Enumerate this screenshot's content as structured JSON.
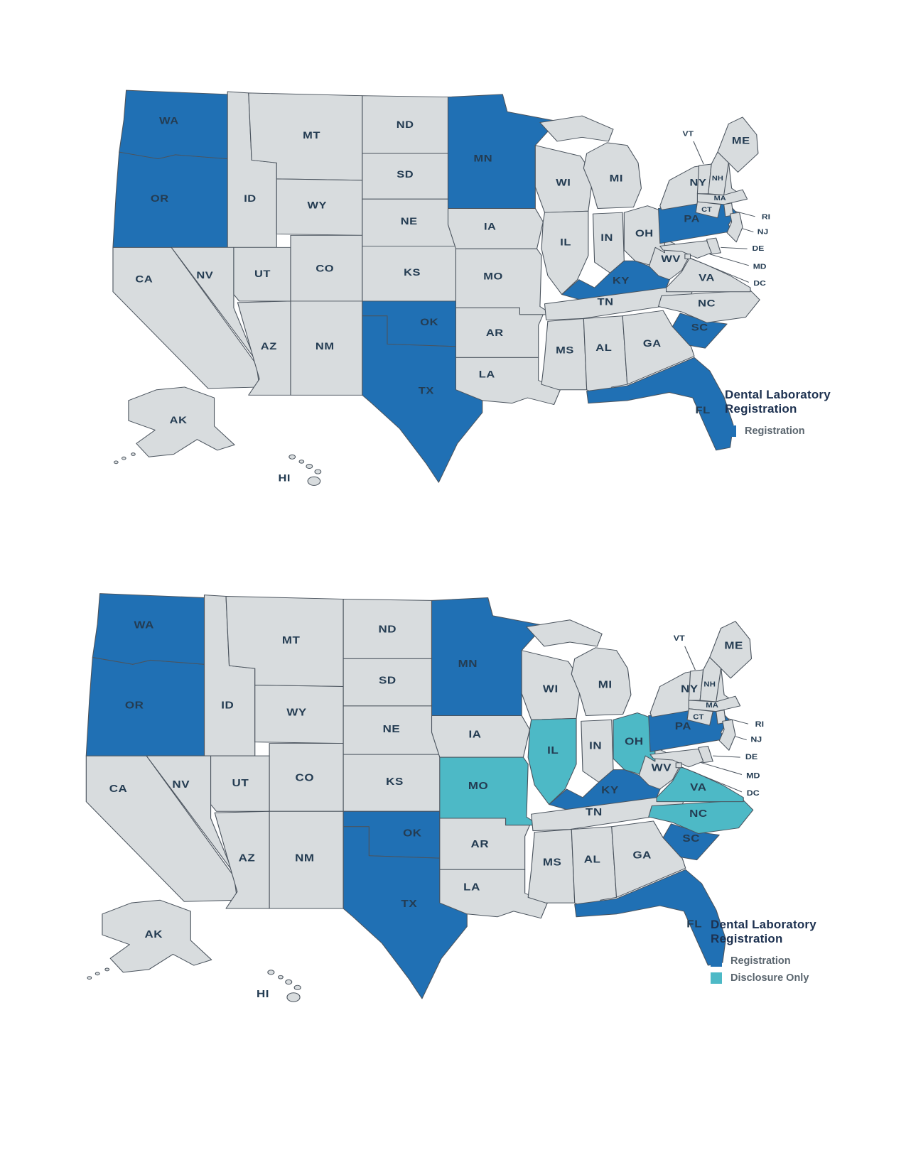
{
  "colors": {
    "registration": "#2070b4",
    "disclosure_only": "#4db9c6",
    "state_default": "#d8dcde",
    "state_border": "#4b545e",
    "state_label": "#243c52",
    "leader_line": "#4b545e",
    "legend_title": "#1d3150",
    "legend_text": "#5a656e",
    "background": "#ffffff"
  },
  "legend": {
    "title_line1": "Dental Laboratory",
    "title_line2": "Registration"
  },
  "maps": [
    {
      "name": "registration-only-map",
      "legend_items": [
        {
          "type": "registration",
          "label": "Registration"
        }
      ],
      "registration_states": [
        "WA",
        "OR",
        "MN",
        "PA",
        "KY",
        "OK",
        "TX",
        "SC",
        "FL"
      ],
      "disclosure_states": []
    },
    {
      "name": "registration-and-disclosure-map",
      "legend_items": [
        {
          "type": "registration",
          "label": "Registration"
        },
        {
          "type": "disclosure_only",
          "label": "Disclosure Only"
        }
      ],
      "registration_states": [
        "WA",
        "OR",
        "MN",
        "PA",
        "KY",
        "OK",
        "TX",
        "SC",
        "FL"
      ],
      "disclosure_states": [
        "MO",
        "IL",
        "OH",
        "VA",
        "NC"
      ]
    }
  ],
  "states": [
    "CA",
    "OR",
    "WA",
    "ID",
    "MT",
    "WY",
    "NV",
    "UT",
    "CO",
    "AZ",
    "NM",
    "ND",
    "SD",
    "NE",
    "KS",
    "OK",
    "TX",
    "MN",
    "IA",
    "MO",
    "AR",
    "LA",
    "WI",
    "IL",
    "MI",
    "IN",
    "OH",
    "KY",
    "TN",
    "MS",
    "AL",
    "GA",
    "FL",
    "SC",
    "NC",
    "VA",
    "WV",
    "PA",
    "NY",
    "ME",
    "VT",
    "NH",
    "MA",
    "CT",
    "RI",
    "NJ",
    "DE",
    "MD",
    "DC",
    "AK",
    "HI"
  ]
}
